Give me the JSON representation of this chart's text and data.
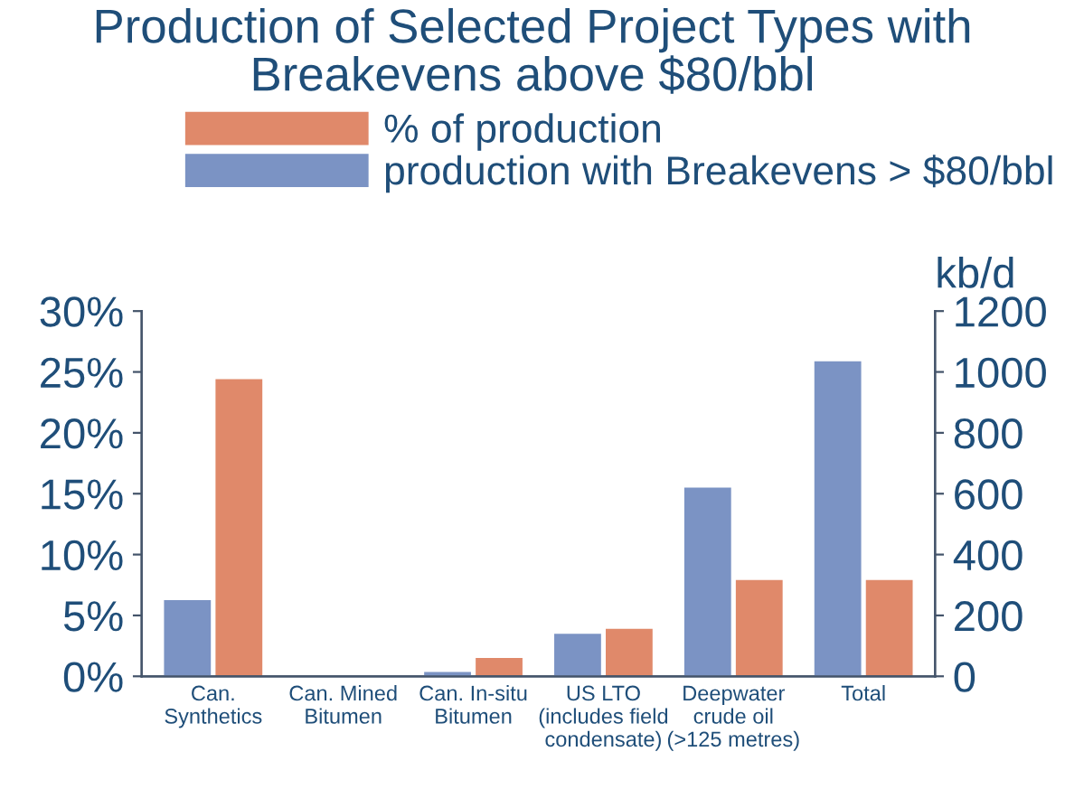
{
  "chart_data": {
    "type": "bar",
    "title": "Production of Selected Project Types with\nBreakevens above $80/bbl",
    "categories": [
      "Can.\nSynthetics",
      "Can. Mined\nBitumen",
      "Can. In-situ\nBitumen",
      "US LTO\n(includes field\ncondensate)",
      "Deepwater\ncrude oil\n(>125 metres)",
      "Total"
    ],
    "series": [
      {
        "name": "production with Breakevens > $80/bbl",
        "color": "#7b93c4",
        "axis": "y2",
        "values": [
          250,
          0,
          14,
          140,
          620,
          1035
        ]
      },
      {
        "name": "% of production",
        "color": "#e0896a",
        "values": [
          24.4,
          0,
          1.5,
          3.9,
          7.9,
          7.9
        ]
      }
    ],
    "ylim": [
      0,
      30
    ],
    "yticks": [
      {
        "value": 0,
        "label": "0%"
      },
      {
        "value": 5,
        "label": "5%"
      },
      {
        "value": 10,
        "label": "10%"
      },
      {
        "value": 15,
        "label": "15%"
      },
      {
        "value": 20,
        "label": "20%"
      },
      {
        "value": 25,
        "label": "25%"
      },
      {
        "value": 30,
        "label": "30%"
      }
    ],
    "y2lim": [
      0,
      1200
    ],
    "y2ticks": [
      0,
      200,
      400,
      600,
      800,
      1000,
      1200
    ],
    "y2label": "kb/d",
    "legend": "top",
    "grid": false
  }
}
